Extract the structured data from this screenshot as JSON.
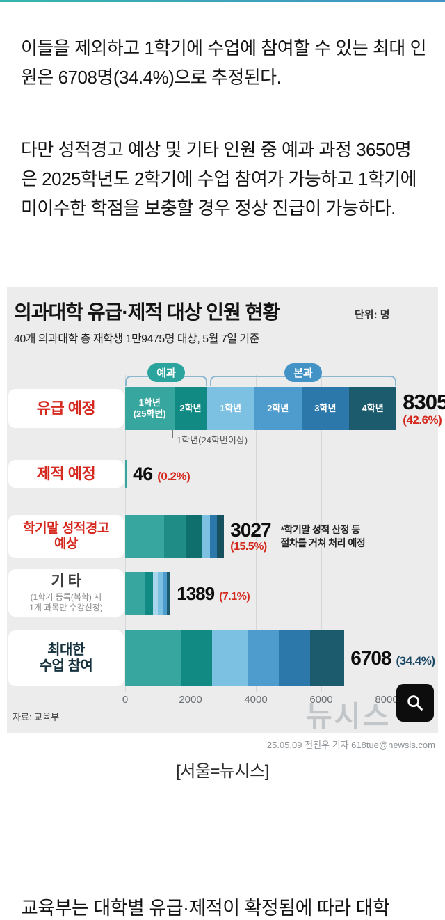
{
  "page": {
    "paragraph1": "이들을 제외하고 1학기에 수업에 참여할 수 있는 최대 인원은 6708명(34.4%)으로 추정된다.",
    "paragraph2": "다만 성적경고 예상 및 기타 인원 중 예과 과정 3650명은 2025학년도 2학기에 수업 참여가 가능하고 1학기에 미이수한 학점을 보충할 경우 정상 진급이 가능하다.",
    "caption": "[서울=뉴시스]",
    "bottom_paragraph": "교육부는 대학별 유급·제적이 확정됨에 따라 대학"
  },
  "figure": {
    "source": "자료: 교육부",
    "watermark": "뉴시스",
    "credit": "25.05.09 전진우 기자 618tue@newsis.com"
  },
  "chart_data": {
    "type": "bar",
    "orientation": "horizontal",
    "title": "의과대학 유급·제적 대상 인원 현황",
    "unit_label": "단위: 명",
    "subtitle": "40개 의과대학 총 재학생 1만9475명 대상, 5월 7일 기준",
    "xlim": [
      0,
      8500
    ],
    "x_ticks": [
      0,
      2000,
      4000,
      6000,
      8000
    ],
    "grid": true,
    "segment_values_estimated": true,
    "groups": [
      {
        "label": "예과",
        "badge_color": "#2ba49e"
      },
      {
        "label": "본과",
        "badge_color": "#4493c6"
      }
    ],
    "rows": [
      {
        "label": "유급 예정",
        "label_color": "#d5281f",
        "value": 8305,
        "value_text": "8305",
        "pct_text": "(42.6%)",
        "pct_color": "#d5281f",
        "note": "1학년(24학번이상)",
        "segments": [
          {
            "label": "1학년\n(25학번)",
            "value": 1500,
            "color": "#36a69e"
          },
          {
            "label": "2학년",
            "value": 1000,
            "color": "#128a84"
          },
          {
            "label": "1학년",
            "value": 1450,
            "color": "#7cc0e2"
          },
          {
            "label": "2학년",
            "value": 1450,
            "color": "#4e9ccd"
          },
          {
            "label": "3학년",
            "value": 1450,
            "color": "#2d78ab"
          },
          {
            "label": "4학년",
            "value": 1455,
            "color": "#1c5a6e"
          }
        ]
      },
      {
        "label": "제적 예정",
        "label_color": "#d5281f",
        "value": 46,
        "value_text": "46",
        "pct_text": "(0.2%)",
        "pct_color": "#d5281f",
        "segments": [
          {
            "value": 46,
            "color": "#36a69e"
          }
        ]
      },
      {
        "label": "학기말 성적경고\n예상",
        "label_color": "#d5281f",
        "value": 3027,
        "value_text": "3027",
        "pct_text": "(15.5%)",
        "pct_color": "#d5281f",
        "note": "*학기말 성적 산정 등\n절차를 거쳐 처리 예정",
        "segments": [
          {
            "value": 1200,
            "color": "#36a69e"
          },
          {
            "value": 650,
            "color": "#1f8d86"
          },
          {
            "value": 500,
            "color": "#0e6f6c"
          },
          {
            "value": 250,
            "color": "#7cc0e2"
          },
          {
            "value": 200,
            "color": "#2d78ab"
          },
          {
            "value": 227,
            "color": "#17505f"
          }
        ]
      },
      {
        "label": "기 타",
        "label_color": "#3c3c3c",
        "sub": "(1학기 등록(복학) 시\n1개 과목만 수강신청)",
        "value": 1389,
        "value_text": "1389",
        "pct_text": "(7.1%)",
        "pct_color": "#d5281f",
        "segments": [
          {
            "value": 600,
            "color": "#36a69e"
          },
          {
            "value": 250,
            "color": "#128a84"
          },
          {
            "value": 150,
            "color": "#a9d6ec"
          },
          {
            "value": 150,
            "color": "#7cc0e2"
          },
          {
            "value": 120,
            "color": "#4e9ccd"
          },
          {
            "value": 119,
            "color": "#1c5a6e"
          }
        ]
      },
      {
        "label": "최대한\n수업 참여",
        "label_color": "#17333f",
        "value": 6708,
        "value_text": "6708",
        "pct_text": "(34.4%)",
        "pct_color": "#1b4965",
        "segments": [
          {
            "value": 1700,
            "color": "#36a69e"
          },
          {
            "value": 950,
            "color": "#128a84"
          },
          {
            "value": 1100,
            "color": "#7cc0e2"
          },
          {
            "value": 950,
            "color": "#4e9ccd"
          },
          {
            "value": 950,
            "color": "#2d78ab"
          },
          {
            "value": 1058,
            "color": "#1c5a6e"
          }
        ]
      }
    ]
  }
}
